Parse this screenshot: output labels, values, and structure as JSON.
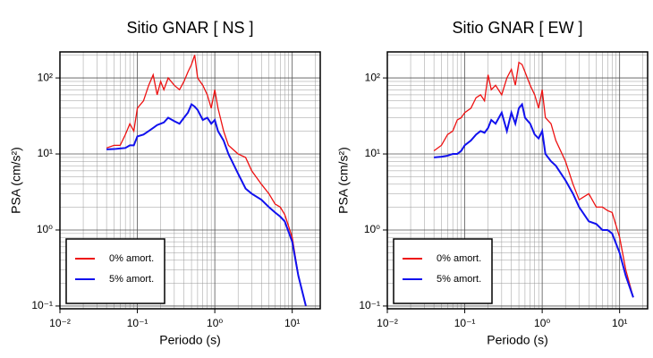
{
  "chart_data": [
    {
      "type": "line",
      "title": "Sitio GNAR [ NS ]",
      "x_label": "Periodo (s)",
      "y_label": "PSA (cm/s²)",
      "log_x": true,
      "log_y": true,
      "grid": true,
      "legend": "lower left",
      "xlim": [
        0.01,
        23
      ],
      "ylim": [
        0.092,
        220
      ],
      "xticks": [
        {
          "value": 0.01,
          "label": "10⁻²"
        },
        {
          "value": 0.1,
          "label": "10⁻¹"
        },
        {
          "value": 1,
          "label": "10⁰"
        },
        {
          "value": 10,
          "label": "10¹"
        }
      ],
      "yticks": [
        {
          "value": 0.1,
          "label": "10⁻¹"
        },
        {
          "value": 1,
          "label": "10⁰"
        },
        {
          "value": 10,
          "label": "10¹"
        },
        {
          "value": 100,
          "label": "10²"
        }
      ],
      "x": [
        0.04,
        0.05,
        0.06,
        0.07,
        0.08,
        0.09,
        0.1,
        0.12,
        0.14,
        0.16,
        0.18,
        0.2,
        0.22,
        0.25,
        0.3,
        0.35,
        0.4,
        0.45,
        0.5,
        0.55,
        0.6,
        0.7,
        0.8,
        0.9,
        1.0,
        1.1,
        1.3,
        1.5,
        2,
        2.5,
        3,
        4,
        5,
        6,
        7,
        8,
        10,
        12,
        15
      ],
      "series": [
        {
          "name": "0% amort.",
          "color": "#ee1111",
          "values": [
            12,
            13,
            13,
            18,
            25,
            20,
            40,
            50,
            80,
            110,
            60,
            90,
            70,
            100,
            80,
            70,
            90,
            120,
            150,
            200,
            100,
            80,
            60,
            40,
            70,
            40,
            20,
            13,
            10,
            9,
            6,
            4,
            3,
            2.2,
            2,
            1.6,
            0.8,
            0.25,
            0.1
          ]
        },
        {
          "name": "5% amort.",
          "color": "#1111ee",
          "values": [
            11.5,
            11.6,
            11.8,
            12,
            13,
            13,
            17,
            18,
            20,
            22,
            24,
            25,
            26,
            30,
            27,
            25,
            30,
            35,
            45,
            42,
            38,
            28,
            30,
            25,
            28,
            20,
            15,
            10,
            5.5,
            3.5,
            3,
            2.5,
            2,
            1.7,
            1.5,
            1.3,
            0.7,
            0.25,
            0.1
          ]
        }
      ]
    },
    {
      "type": "line",
      "title": "Sitio GNAR [ EW ]",
      "x_label": "Periodo (s)",
      "y_label": "PSA (cm/s²)",
      "log_x": true,
      "log_y": true,
      "grid": true,
      "legend": "lower left",
      "xlim": [
        0.01,
        23
      ],
      "ylim": [
        0.092,
        220
      ],
      "xticks": [
        {
          "value": 0.01,
          "label": "10⁻²"
        },
        {
          "value": 0.1,
          "label": "10⁻¹"
        },
        {
          "value": 1,
          "label": "10⁰"
        },
        {
          "value": 10,
          "label": "10¹"
        }
      ],
      "yticks": [
        {
          "value": 0.1,
          "label": "10⁻¹"
        },
        {
          "value": 1,
          "label": "10⁰"
        },
        {
          "value": 10,
          "label": "10¹"
        },
        {
          "value": 100,
          "label": "10²"
        }
      ],
      "x": [
        0.04,
        0.05,
        0.06,
        0.07,
        0.08,
        0.09,
        0.1,
        0.12,
        0.14,
        0.16,
        0.18,
        0.2,
        0.22,
        0.25,
        0.3,
        0.35,
        0.4,
        0.45,
        0.5,
        0.55,
        0.6,
        0.7,
        0.8,
        0.9,
        1.0,
        1.1,
        1.3,
        1.5,
        2,
        2.5,
        3,
        4,
        5,
        6,
        7,
        8,
        10,
        12,
        15
      ],
      "series": [
        {
          "name": "0% amort.",
          "color": "#ee1111",
          "values": [
            11,
            13,
            18,
            20,
            28,
            30,
            35,
            40,
            55,
            60,
            50,
            110,
            70,
            80,
            60,
            100,
            130,
            80,
            160,
            150,
            120,
            80,
            60,
            40,
            70,
            30,
            25,
            15,
            8,
            4,
            2.5,
            3,
            2,
            2,
            1.8,
            1.7,
            0.8,
            0.3,
            0.13
          ]
        },
        {
          "name": "5% amort.",
          "color": "#1111ee",
          "values": [
            9,
            9.2,
            9.5,
            10,
            10,
            11,
            13,
            15,
            18,
            20,
            19,
            22,
            28,
            25,
            35,
            20,
            35,
            25,
            40,
            45,
            30,
            25,
            18,
            16,
            20,
            10,
            8,
            7,
            4.5,
            3,
            2,
            1.3,
            1.2,
            1,
            1,
            0.9,
            0.5,
            0.25,
            0.13
          ]
        }
      ]
    }
  ]
}
